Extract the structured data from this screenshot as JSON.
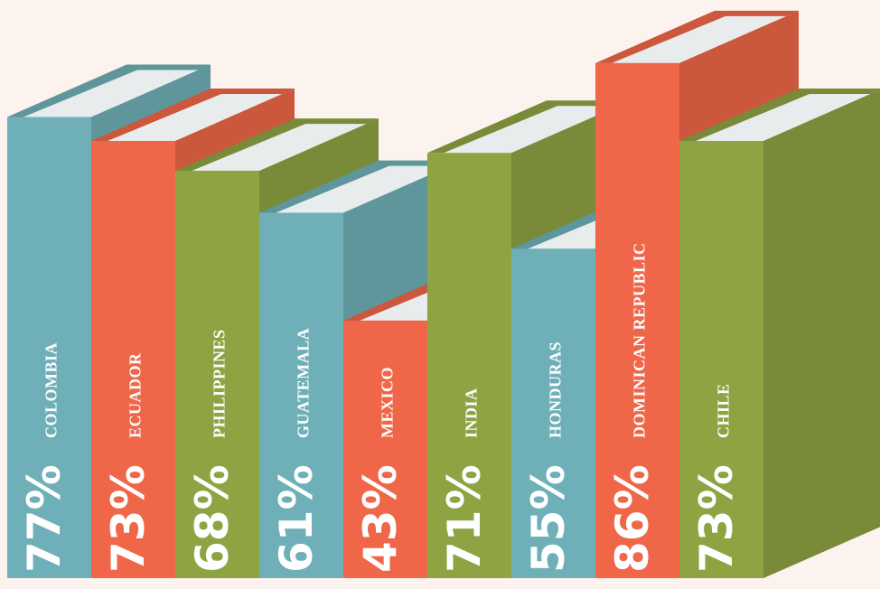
{
  "chart_data": {
    "type": "bar",
    "categories": [
      "COLOMBIA",
      "ECUADOR",
      "PHILIPPINES",
      "GUATEMALA",
      "MEXICO",
      "INDIA",
      "HONDURAS",
      "DOMINICAN REPUBLIC",
      "CHILE"
    ],
    "values": [
      77,
      73,
      68,
      61,
      43,
      71,
      55,
      86,
      73
    ],
    "value_labels": [
      "77%",
      "73%",
      "68%",
      "61%",
      "43%",
      "71%",
      "55%",
      "86%",
      "73%"
    ],
    "colors": [
      "#6fb0b8",
      "#ef6648",
      "#8ea443",
      "#6fb0b8",
      "#ef6648",
      "#8ea443",
      "#6fb0b8",
      "#ef6648",
      "#8ea443"
    ]
  }
}
